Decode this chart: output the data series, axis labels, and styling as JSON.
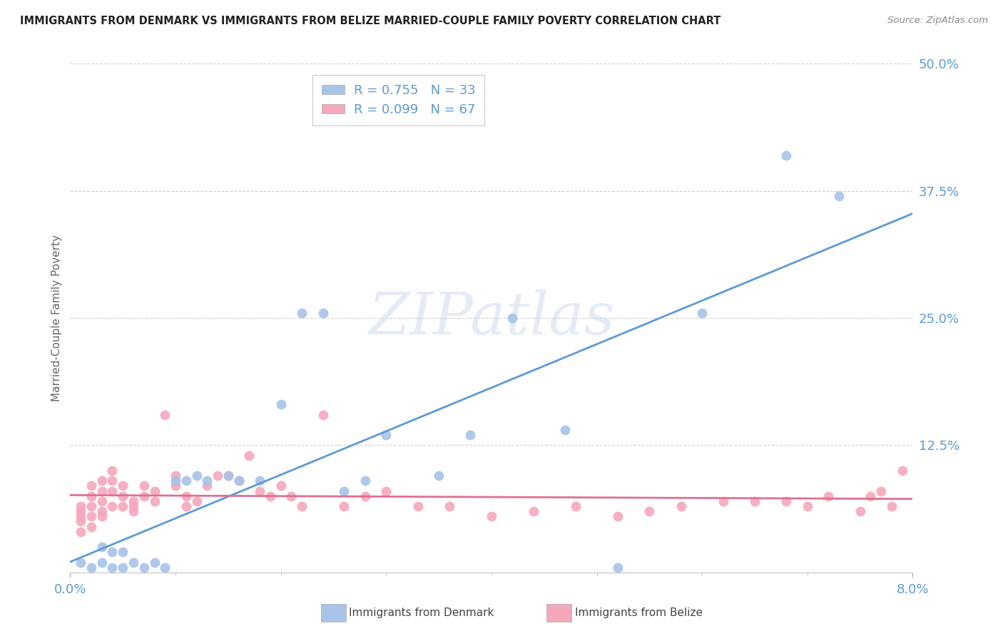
{
  "title": "IMMIGRANTS FROM DENMARK VS IMMIGRANTS FROM BELIZE MARRIED-COUPLE FAMILY POVERTY CORRELATION CHART",
  "source": "Source: ZipAtlas.com",
  "ylabel": "Married-Couple Family Poverty",
  "xlim": [
    0.0,
    0.08
  ],
  "ylim": [
    0.0,
    0.5
  ],
  "yticks": [
    0.0,
    0.125,
    0.25,
    0.375,
    0.5
  ],
  "ytick_labels": [
    "",
    "12.5%",
    "25.0%",
    "37.5%",
    "50.0%"
  ],
  "color_denmark": "#a8c4e8",
  "color_belize": "#f5a8bb",
  "color_line_denmark": "#5b9bd5",
  "color_line_belize": "#e07090",
  "color_axis_labels": "#5b9bd5",
  "legend_R_denmark": "R = 0.755",
  "legend_N_denmark": "N = 33",
  "legend_R_belize": "R = 0.099",
  "legend_N_belize": "N = 67",
  "denmark_x": [
    0.001,
    0.002,
    0.003,
    0.003,
    0.004,
    0.004,
    0.005,
    0.005,
    0.006,
    0.007,
    0.008,
    0.009,
    0.01,
    0.011,
    0.012,
    0.013,
    0.015,
    0.016,
    0.018,
    0.02,
    0.022,
    0.024,
    0.026,
    0.028,
    0.03,
    0.035,
    0.038,
    0.042,
    0.047,
    0.052,
    0.06,
    0.068,
    0.073
  ],
  "denmark_y": [
    0.01,
    0.005,
    0.01,
    0.025,
    0.005,
    0.02,
    0.005,
    0.02,
    0.01,
    0.005,
    0.01,
    0.005,
    0.09,
    0.09,
    0.095,
    0.09,
    0.095,
    0.09,
    0.09,
    0.165,
    0.255,
    0.255,
    0.08,
    0.09,
    0.135,
    0.095,
    0.135,
    0.25,
    0.14,
    0.005,
    0.255,
    0.41,
    0.37
  ],
  "belize_x": [
    0.001,
    0.001,
    0.001,
    0.001,
    0.001,
    0.002,
    0.002,
    0.002,
    0.002,
    0.002,
    0.003,
    0.003,
    0.003,
    0.003,
    0.003,
    0.004,
    0.004,
    0.004,
    0.004,
    0.005,
    0.005,
    0.005,
    0.006,
    0.006,
    0.006,
    0.007,
    0.007,
    0.008,
    0.008,
    0.009,
    0.01,
    0.01,
    0.011,
    0.011,
    0.012,
    0.013,
    0.014,
    0.015,
    0.016,
    0.017,
    0.018,
    0.019,
    0.02,
    0.021,
    0.022,
    0.024,
    0.026,
    0.028,
    0.03,
    0.033,
    0.036,
    0.04,
    0.044,
    0.048,
    0.052,
    0.055,
    0.058,
    0.062,
    0.065,
    0.068,
    0.07,
    0.072,
    0.075,
    0.076,
    0.077,
    0.078,
    0.079
  ],
  "belize_y": [
    0.065,
    0.06,
    0.055,
    0.05,
    0.04,
    0.085,
    0.075,
    0.065,
    0.055,
    0.045,
    0.09,
    0.08,
    0.07,
    0.06,
    0.055,
    0.1,
    0.09,
    0.08,
    0.065,
    0.085,
    0.075,
    0.065,
    0.07,
    0.065,
    0.06,
    0.085,
    0.075,
    0.08,
    0.07,
    0.155,
    0.095,
    0.085,
    0.075,
    0.065,
    0.07,
    0.085,
    0.095,
    0.095,
    0.09,
    0.115,
    0.08,
    0.075,
    0.085,
    0.075,
    0.065,
    0.155,
    0.065,
    0.075,
    0.08,
    0.065,
    0.065,
    0.055,
    0.06,
    0.065,
    0.055,
    0.06,
    0.065,
    0.07,
    0.07,
    0.07,
    0.065,
    0.075,
    0.06,
    0.075,
    0.08,
    0.065,
    0.1
  ],
  "watermark": "ZIPatlas",
  "background_color": "#ffffff",
  "grid_color": "#d0d0d0"
}
